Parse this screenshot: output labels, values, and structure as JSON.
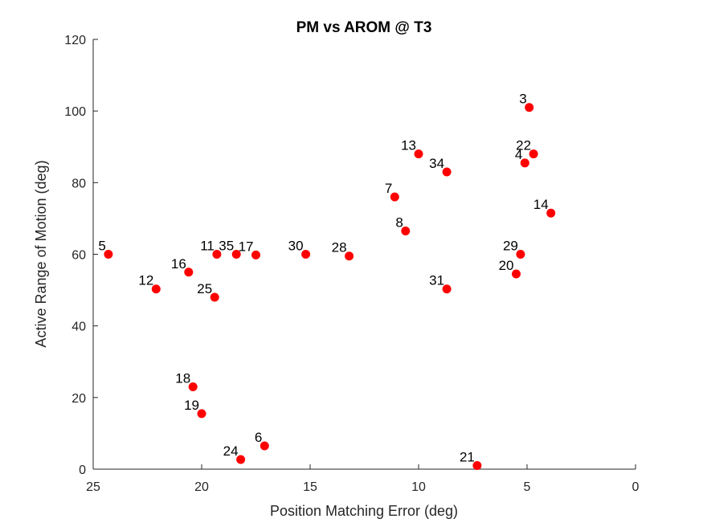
{
  "chart_data": {
    "type": "scatter",
    "title": "PM vs AROM @ T3",
    "xlabel": "Position Matching Error (deg)",
    "ylabel": "Active Range of Motion (deg)",
    "xlim": [
      0,
      25
    ],
    "ylim": [
      0,
      120
    ],
    "x_reversed": true,
    "x_ticks": [
      25,
      20,
      15,
      10,
      5,
      0
    ],
    "y_ticks": [
      0,
      20,
      40,
      60,
      80,
      100,
      120
    ],
    "grid": false,
    "marker_color": "#ff0000",
    "points": [
      {
        "label": "3",
        "x": 4.9,
        "y": 101
      },
      {
        "label": "22",
        "x": 4.7,
        "y": 88
      },
      {
        "label": "4",
        "x": 5.1,
        "y": 85.5
      },
      {
        "label": "13",
        "x": 10.0,
        "y": 88
      },
      {
        "label": "34",
        "x": 8.7,
        "y": 83
      },
      {
        "label": "7",
        "x": 11.1,
        "y": 76
      },
      {
        "label": "14",
        "x": 3.9,
        "y": 71.5
      },
      {
        "label": "8",
        "x": 10.6,
        "y": 66.5
      },
      {
        "label": "5",
        "x": 24.3,
        "y": 60
      },
      {
        "label": "11",
        "x": 19.3,
        "y": 60
      },
      {
        "label": "35",
        "x": 18.4,
        "y": 60
      },
      {
        "label": "17",
        "x": 17.5,
        "y": 59.8
      },
      {
        "label": "30",
        "x": 15.2,
        "y": 60
      },
      {
        "label": "28",
        "x": 13.2,
        "y": 59.5
      },
      {
        "label": "29",
        "x": 5.3,
        "y": 60
      },
      {
        "label": "16",
        "x": 20.6,
        "y": 55
      },
      {
        "label": "20",
        "x": 5.5,
        "y": 54.5
      },
      {
        "label": "12",
        "x": 22.1,
        "y": 50.3
      },
      {
        "label": "31",
        "x": 8.7,
        "y": 50.3
      },
      {
        "label": "25",
        "x": 19.4,
        "y": 48
      },
      {
        "label": "18",
        "x": 20.4,
        "y": 23
      },
      {
        "label": "19",
        "x": 20.0,
        "y": 15.5
      },
      {
        "label": "6",
        "x": 17.1,
        "y": 6.5
      },
      {
        "label": "24",
        "x": 18.2,
        "y": 2.7
      },
      {
        "label": "21",
        "x": 7.3,
        "y": 1
      }
    ]
  }
}
